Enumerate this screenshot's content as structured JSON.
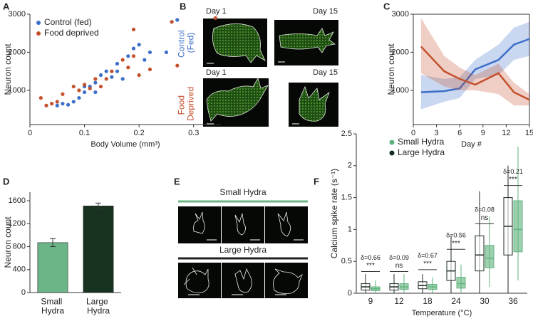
{
  "panel_labels": [
    "A",
    "B",
    "C",
    "D",
    "E",
    "F"
  ],
  "image_panels": {
    "B": {
      "day_labels": [
        "Day 1",
        "Day 15",
        "Day 1",
        "Day 15"
      ],
      "row_labels": [
        "Control (Fed)",
        "Food Deprived"
      ]
    },
    "E": {
      "group_labels": [
        "Small Hydra",
        "Large Hydra"
      ]
    }
  },
  "chart_data": [
    {
      "type": "scatter",
      "x_label": "Body Volume (mm³)",
      "y_label": "Neuron count",
      "xlim": [
        0,
        0.35
      ],
      "xticks": [
        0,
        0.1,
        0.2,
        0.3
      ],
      "ylim": [
        100,
        3000
      ],
      "yticks": [
        1000,
        2000,
        3000
      ],
      "legend": "upper left",
      "series": [
        {
          "name": "Control (fed)",
          "color": "#3d6fc9",
          "x": [
            0.05,
            0.06,
            0.07,
            0.08,
            0.09,
            0.1,
            0.1,
            0.11,
            0.12,
            0.12,
            0.13,
            0.14,
            0.15,
            0.16,
            0.16,
            0.17,
            0.18,
            0.19,
            0.2,
            0.21,
            0.22,
            0.25,
            0.26,
            0.27
          ],
          "values": [
            600,
            650,
            620,
            700,
            800,
            950,
            1100,
            1100,
            1200,
            950,
            1400,
            1500,
            1350,
            1700,
            1500,
            1300,
            1900,
            2100,
            2200,
            1800,
            2000,
            2000,
            2800,
            2850
          ]
        },
        {
          "name": "Food deprived",
          "color": "#c4512d",
          "x": [
            0.02,
            0.03,
            0.04,
            0.05,
            0.06,
            0.08,
            0.09,
            0.1,
            0.11,
            0.12,
            0.13,
            0.14,
            0.15,
            0.17,
            0.18,
            0.19,
            0.19,
            0.2,
            0.22,
            0.26,
            0.27,
            0.34
          ],
          "values": [
            800,
            600,
            650,
            700,
            900,
            1100,
            1000,
            1150,
            1050,
            1300,
            1100,
            1300,
            1500,
            1800,
            1600,
            1900,
            2600,
            1400,
            1550,
            2800,
            1650,
            2900
          ]
        }
      ]
    },
    {
      "type": "line",
      "x_label": "Day #",
      "y_label": "Neuron count",
      "xlim": [
        0,
        15
      ],
      "xticks": [
        0,
        3,
        6,
        9,
        12,
        15
      ],
      "ylim": [
        100,
        3000
      ],
      "yticks": [
        1000,
        2000,
        3000
      ],
      "x": [
        1,
        4,
        6,
        8,
        11,
        13,
        15
      ],
      "series": [
        {
          "color": "#3d6fc9",
          "values": [
            950,
            980,
            1050,
            1550,
            1800,
            2200,
            2350
          ],
          "lower": [
            500,
            700,
            800,
            1300,
            1400,
            1800,
            1900
          ],
          "upper": [
            1400,
            1300,
            1350,
            1800,
            2200,
            2650,
            2800
          ]
        },
        {
          "color": "#c4512d",
          "values": [
            2150,
            1500,
            1300,
            1150,
            1450,
            950,
            750
          ],
          "lower": [
            1450,
            1100,
            1000,
            1000,
            900,
            600,
            600
          ],
          "upper": [
            2900,
            1900,
            1600,
            1400,
            1700,
            1200,
            900
          ]
        }
      ]
    },
    {
      "type": "bar",
      "y_label": "Neuron count",
      "categories": [
        "Small Hydra",
        "Large Hydra"
      ],
      "values": [
        870,
        1510
      ],
      "errors": [
        70,
        50
      ],
      "colors": [
        "#6cb587",
        "#17331f"
      ],
      "ylim": [
        0,
        1750
      ],
      "yticks": [
        0,
        400,
        800,
        1200,
        1600
      ]
    },
    {
      "type": "box",
      "x_label": "Temperature (°C)",
      "y_label": "Calcium spike rate (s⁻¹)",
      "categories": [
        "9",
        "12",
        "18",
        "24",
        "30",
        "36"
      ],
      "ylim": [
        0,
        2.5
      ],
      "yticks": [
        0,
        0.5,
        1,
        1.5,
        2,
        2.5
      ],
      "legend": "upper left",
      "annotations": {
        "delta": [
          "δ=0.66",
          "δ=0.09",
          "δ=0.67",
          "δ=0.56",
          "δ=0.08",
          "δ=0.21"
        ],
        "significance": [
          "***",
          "ns",
          "***",
          "***",
          "ns",
          "***"
        ]
      },
      "series": [
        {
          "name": "Small Hydra",
          "color": "#5fb37c",
          "whislo": [
            0,
            0,
            0,
            0,
            0.1,
            0.2
          ],
          "q1": [
            0.04,
            0.06,
            0.06,
            0.08,
            0.4,
            0.65
          ],
          "med": [
            0.07,
            0.1,
            0.1,
            0.15,
            0.55,
            1.0
          ],
          "q3": [
            0.1,
            0.15,
            0.14,
            0.25,
            0.75,
            1.45
          ],
          "whishi": [
            0.2,
            0.3,
            0.25,
            0.45,
            1.2,
            2.3
          ]
        },
        {
          "name": "Large Hydra",
          "color": "#1b2a1f",
          "whislo": [
            0,
            0,
            0,
            0,
            0,
            0
          ],
          "q1": [
            0.05,
            0.05,
            0.07,
            0.2,
            0.35,
            0.6
          ],
          "med": [
            0.1,
            0.1,
            0.12,
            0.35,
            0.6,
            1.05
          ],
          "q3": [
            0.15,
            0.15,
            0.18,
            0.5,
            0.9,
            1.5
          ],
          "whishi": [
            0.3,
            0.3,
            0.3,
            0.9,
            1.6,
            2.0
          ]
        }
      ]
    }
  ]
}
